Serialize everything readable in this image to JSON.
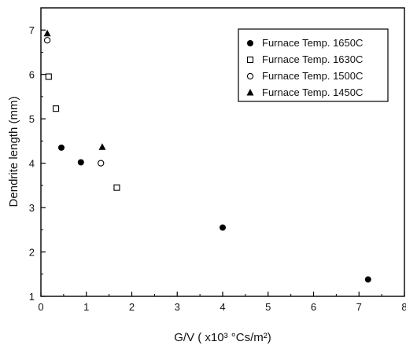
{
  "chart_data": {
    "type": "scatter",
    "xlabel": "G/V ( x10³ °Cs/m²)",
    "ylabel": "Dendrite length (mm)",
    "xlim": [
      0,
      8
    ],
    "ylim": [
      1,
      7.5
    ],
    "xticks": [
      0,
      1,
      2,
      3,
      4,
      5,
      6,
      7,
      8
    ],
    "yticks": [
      1,
      2,
      3,
      4,
      5,
      6,
      7
    ],
    "grid": false,
    "legend_position": "top-right",
    "series": [
      {
        "name": "Furnace Temp. 1650C",
        "marker": "filled-circle",
        "x": [
          0.45,
          0.88,
          4.0,
          7.2
        ],
        "y": [
          4.35,
          4.02,
          2.55,
          1.38
        ]
      },
      {
        "name": "Furnace Temp. 1630C",
        "marker": "open-square",
        "x": [
          0.17,
          0.33,
          1.67
        ],
        "y": [
          5.95,
          5.23,
          3.45
        ]
      },
      {
        "name": "Furnace Temp. 1500C",
        "marker": "open-circle",
        "x": [
          0.14,
          1.32
        ],
        "y": [
          6.77,
          4.0
        ]
      },
      {
        "name": "Furnace Temp. 1450C",
        "marker": "filled-triangle",
        "x": [
          0.14,
          1.35
        ],
        "y": [
          6.92,
          4.36
        ]
      }
    ]
  }
}
